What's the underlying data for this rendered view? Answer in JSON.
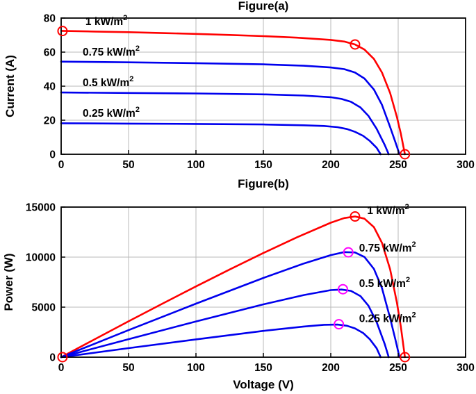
{
  "page": {
    "background": "#ffffff"
  },
  "colors": {
    "red": "#ff0000",
    "blue": "#0000ee",
    "magenta": "#ff00ff",
    "grid": "#b8b8b8",
    "axis": "#000000",
    "text": "#000000"
  },
  "chart_data": [
    {
      "id": "figure-a",
      "type": "line",
      "title": "Figure(a)",
      "xlabel": "",
      "ylabel": "Current (A)",
      "xlim": [
        0,
        300
      ],
      "ylim": [
        0,
        80
      ],
      "xticks": [
        0,
        50,
        100,
        150,
        200,
        250,
        300
      ],
      "yticks": [
        0,
        20,
        40,
        60,
        80
      ],
      "grid": true,
      "legend": "none",
      "series": [
        {
          "name": "1 kW/m2",
          "color": "#ff0000",
          "points": [
            [
              0,
              72.5
            ],
            [
              25,
              72.1
            ],
            [
              50,
              71.7
            ],
            [
              75,
              71.2
            ],
            [
              100,
              70.7
            ],
            [
              125,
              70.1
            ],
            [
              150,
              69.4
            ],
            [
              175,
              68.5
            ],
            [
              200,
              67.2
            ],
            [
              210,
              66.2
            ],
            [
              218,
              64.5
            ],
            [
              225,
              61.5
            ],
            [
              232,
              56
            ],
            [
              238,
              48
            ],
            [
              244,
              36
            ],
            [
              249,
              22
            ],
            [
              252,
              12
            ],
            [
              255,
              0
            ]
          ]
        },
        {
          "name": "0.75 kW/m2",
          "color": "#0000ee",
          "points": [
            [
              0,
              54.4
            ],
            [
              50,
              54
            ],
            [
              100,
              53.5
            ],
            [
              150,
              52.8
            ],
            [
              180,
              52
            ],
            [
              200,
              51
            ],
            [
              210,
              50
            ],
            [
              218,
              48
            ],
            [
              225,
              44.5
            ],
            [
              232,
              38
            ],
            [
              238,
              29
            ],
            [
              244,
              16
            ],
            [
              248,
              7
            ],
            [
              251,
              0
            ]
          ]
        },
        {
          "name": "0.5 kW/m2",
          "color": "#0000ee",
          "points": [
            [
              0,
              36.3
            ],
            [
              50,
              36
            ],
            [
              100,
              35.7
            ],
            [
              150,
              35.2
            ],
            [
              180,
              34.5
            ],
            [
              200,
              33.5
            ],
            [
              208,
              32.5
            ],
            [
              215,
              30.8
            ],
            [
              222,
              27.5
            ],
            [
              228,
              22.5
            ],
            [
              234,
              15
            ],
            [
              240,
              5.5
            ],
            [
              243,
              0
            ]
          ]
        },
        {
          "name": "0.25 kW/m2",
          "color": "#0000ee",
          "points": [
            [
              0,
              18.2
            ],
            [
              50,
              18
            ],
            [
              100,
              17.8
            ],
            [
              150,
              17.5
            ],
            [
              180,
              17
            ],
            [
              195,
              16.6
            ],
            [
              205,
              15.9
            ],
            [
              212,
              14.8
            ],
            [
              218,
              13.2
            ],
            [
              224,
              10.8
            ],
            [
              229,
              7.8
            ],
            [
              234,
              3.8
            ],
            [
              237,
              0
            ]
          ]
        }
      ],
      "markers": [
        {
          "x": 1,
          "y": 72.4,
          "color": "#ff0000"
        },
        {
          "x": 218,
          "y": 64.5,
          "color": "#ff0000"
        },
        {
          "x": 255,
          "y": 0,
          "color": "#ff0000"
        }
      ],
      "annotations": [
        {
          "text": "1 kW/m",
          "sup": "2",
          "x": 18,
          "y": 76,
          "color": "#ff0000"
        },
        {
          "text": "0.75 kW/m",
          "sup": "2",
          "x": 16,
          "y": 58,
          "color": "#000000"
        },
        {
          "text": "0.5 kW/m",
          "sup": "2",
          "x": 16,
          "y": 40,
          "color": "#000000"
        },
        {
          "text": "0.25 kW/m",
          "sup": "2",
          "x": 16,
          "y": 22,
          "color": "#000000"
        }
      ]
    },
    {
      "id": "figure-b",
      "type": "line",
      "title": "Figure(b)",
      "xlabel": "Voltage (V)",
      "ylabel": "Power (W)",
      "xlim": [
        0,
        300
      ],
      "ylim": [
        0,
        15000
      ],
      "xticks": [
        0,
        50,
        100,
        150,
        200,
        250,
        300
      ],
      "yticks": [
        0,
        5000,
        10000,
        15000
      ],
      "grid": true,
      "legend": "none",
      "series": [
        {
          "name": "1 kW/m2",
          "color": "#ff0000",
          "points": [
            [
              0,
              0
            ],
            [
              25,
              1802
            ],
            [
              50,
              3585
            ],
            [
              75,
              5340
            ],
            [
              100,
              7070
            ],
            [
              125,
              8762
            ],
            [
              150,
              10410
            ],
            [
              175,
              11987
            ],
            [
              200,
              13440
            ],
            [
              210,
              13902
            ],
            [
              218,
              14061
            ],
            [
              225,
              13837
            ],
            [
              232,
              12992
            ],
            [
              238,
              11424
            ],
            [
              244,
              8784
            ],
            [
              249,
              5478
            ],
            [
              252,
              3024
            ],
            [
              255,
              0
            ]
          ]
        },
        {
          "name": "0.75 kW/m2",
          "color": "#0000ee",
          "points": [
            [
              0,
              0
            ],
            [
              50,
              2700
            ],
            [
              100,
              5350
            ],
            [
              150,
              7920
            ],
            [
              180,
              9360
            ],
            [
              200,
              10200
            ],
            [
              210,
              10500
            ],
            [
              218,
              10464
            ],
            [
              225,
              10012
            ],
            [
              232,
              8816
            ],
            [
              238,
              6902
            ],
            [
              244,
              3904
            ],
            [
              248,
              1736
            ],
            [
              251,
              0
            ]
          ]
        },
        {
          "name": "0.5 kW/m2",
          "color": "#0000ee",
          "points": [
            [
              0,
              0
            ],
            [
              50,
              1800
            ],
            [
              100,
              3570
            ],
            [
              150,
              5280
            ],
            [
              180,
              6210
            ],
            [
              200,
              6700
            ],
            [
              208,
              6760
            ],
            [
              215,
              6622
            ],
            [
              222,
              6105
            ],
            [
              228,
              5130
            ],
            [
              234,
              3510
            ],
            [
              240,
              1320
            ],
            [
              243,
              0
            ]
          ]
        },
        {
          "name": "0.25 kW/m2",
          "color": "#0000ee",
          "points": [
            [
              0,
              0
            ],
            [
              50,
              900
            ],
            [
              100,
              1780
            ],
            [
              150,
              2625
            ],
            [
              180,
              3060
            ],
            [
              195,
              3237
            ],
            [
              205,
              3260
            ],
            [
              212,
              3138
            ],
            [
              218,
              2878
            ],
            [
              224,
              2419
            ],
            [
              229,
              1786
            ],
            [
              234,
              889
            ],
            [
              237,
              0
            ]
          ]
        }
      ],
      "markers": [
        {
          "x": 1,
          "y": 0,
          "color": "#ff0000"
        },
        {
          "x": 218,
          "y": 14061,
          "color": "#ff0000"
        },
        {
          "x": 255,
          "y": 0,
          "color": "#ff0000"
        },
        {
          "x": 213,
          "y": 10480,
          "color": "#ff00ff"
        },
        {
          "x": 209,
          "y": 6790,
          "color": "#ff00ff"
        },
        {
          "x": 206,
          "y": 3290,
          "color": "#ff00ff"
        }
      ],
      "annotations": [
        {
          "text": "1 kW/m",
          "sup": "2",
          "x": 227,
          "y": 14300,
          "color": "#ff0000"
        },
        {
          "text": "0.75 kW/m",
          "sup": "2",
          "x": 221,
          "y": 10550,
          "color": "#000000"
        },
        {
          "text": "0.5 kW/m",
          "sup": "2",
          "x": 221,
          "y": 7000,
          "color": "#000000"
        },
        {
          "text": "0.25 kW/m",
          "sup": "2",
          "x": 221,
          "y": 3500,
          "color": "#000000"
        }
      ]
    }
  ]
}
